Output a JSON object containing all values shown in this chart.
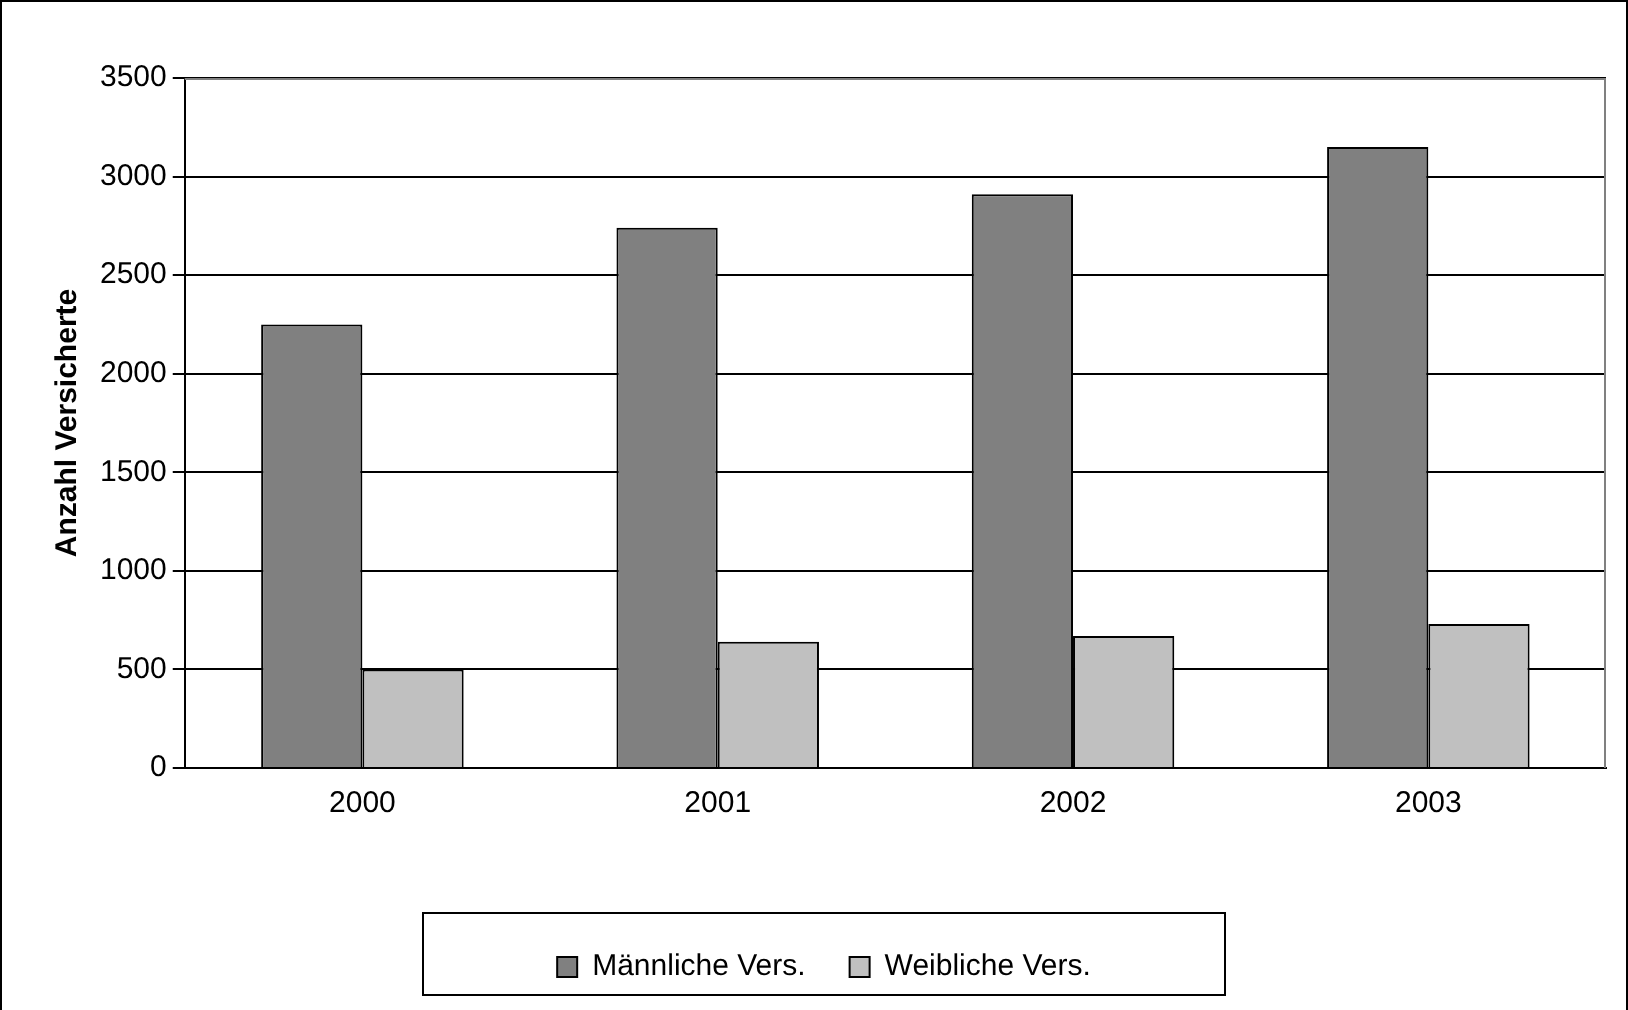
{
  "chart_data": {
    "type": "bar",
    "ylabel": "Anzahl Versicherte",
    "categories": [
      "2000",
      "2001",
      "2002",
      "2003"
    ],
    "series": [
      {
        "name": "Männliche Vers.",
        "color": "#808080",
        "values": [
          2250,
          2740,
          2910,
          3150
        ]
      },
      {
        "name": "Weibliche Vers.",
        "color": "#c0c0c0",
        "values": [
          500,
          640,
          670,
          730
        ]
      }
    ],
    "ylim": [
      0,
      3500
    ],
    "yticks": [
      0,
      500,
      1000,
      1500,
      2000,
      2500,
      3000,
      3500
    ],
    "grid": "y",
    "legend": "bottom"
  }
}
